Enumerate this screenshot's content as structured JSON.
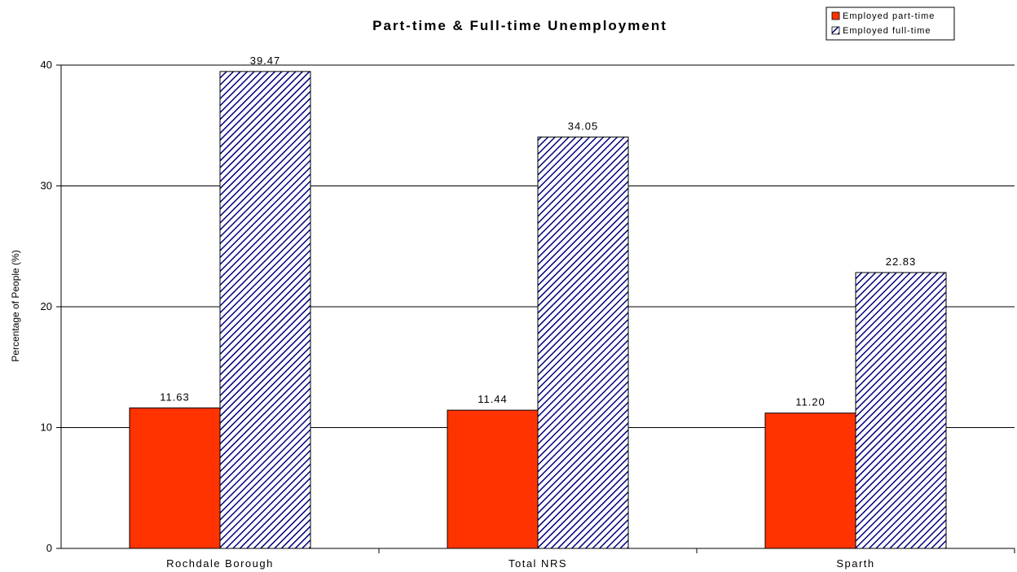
{
  "chart_data": {
    "type": "bar",
    "title": "Part-time & Full-time Unemployment",
    "ylabel": "Percentage of People (%)",
    "xlabel": "",
    "categories": [
      "Rochdale Borough",
      "Total NRS",
      "Sparth"
    ],
    "ylim": [
      0,
      40
    ],
    "yticks": [
      0,
      10,
      20,
      30,
      40
    ],
    "grid": true,
    "legend_position": "top-right",
    "series": [
      {
        "name": "Employed part-time",
        "values": [
          11.63,
          11.44,
          11.2
        ],
        "value_labels": [
          "11.63",
          "11.44",
          "11.20"
        ],
        "color": "#ff3300",
        "pattern": "solid"
      },
      {
        "name": "Employed full-time",
        "values": [
          39.47,
          34.05,
          22.83
        ],
        "value_labels": [
          "39.47",
          "34.05",
          "22.83"
        ],
        "color": "#000080",
        "pattern": "diagonal-hatch"
      }
    ]
  }
}
